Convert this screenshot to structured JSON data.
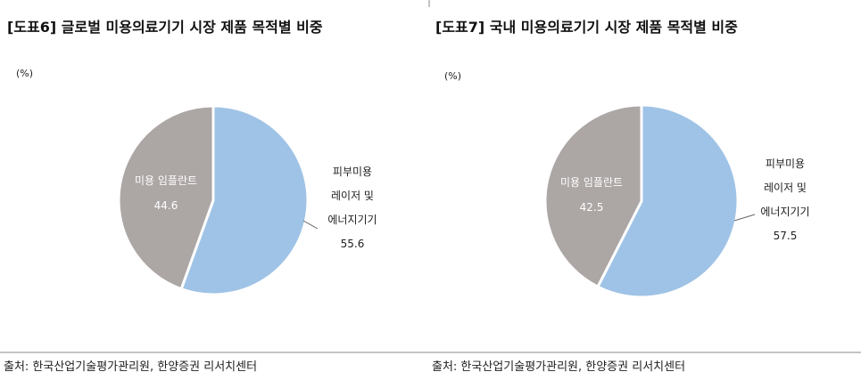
{
  "chart_data": [
    {
      "type": "pie",
      "title": "[도표6] 글로벌 미용의료기기 시장 제품 목적별 비중",
      "unit_label": "(%)",
      "categories": [
        "피부미용\n레이저 및\n에너지기기",
        "미용 임플란트"
      ],
      "values": [
        55.6,
        44.6
      ],
      "colors": [
        "#9fc3e6",
        "#aca6a5"
      ],
      "source": "출처: 한국산업기술평가관리원, 한양증권 리서치센터"
    },
    {
      "type": "pie",
      "title": "[도표7] 국내 미용의료기기 시장 제품 목적별 비중",
      "unit_label": "(%)",
      "categories": [
        "피부미용\n레이저 및\n에너지기기",
        "미용 임플란트"
      ],
      "values": [
        57.5,
        42.5
      ],
      "colors": [
        "#9fc3e6",
        "#aca6a5"
      ],
      "source": "출처: 한국산업기술평가관리원, 한양증권 리서치센터"
    }
  ]
}
